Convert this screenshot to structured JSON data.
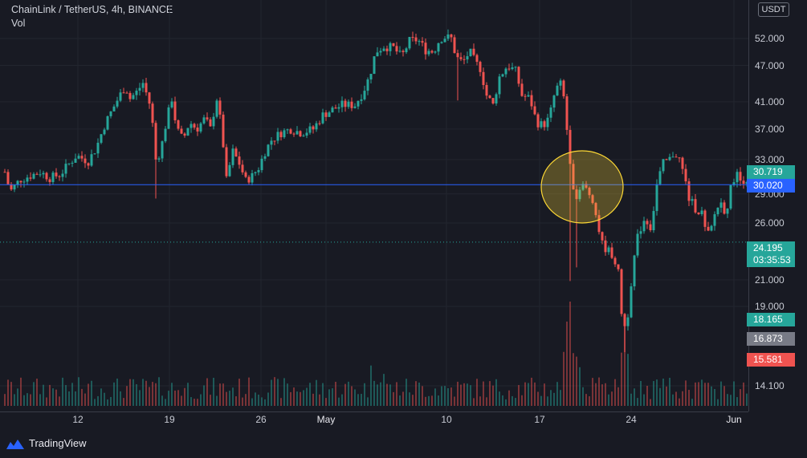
{
  "header": {
    "title": "ChainLink / TetherUS, 4h, BINANCE",
    "volume_label": "Vol"
  },
  "currency_badge": "USDT",
  "brand": {
    "name": "TradingView"
  },
  "colors": {
    "up": "#26a69a",
    "down": "#ef5350",
    "line_level": "#2962ff",
    "dotted_line": "#26a69a",
    "annotation_fill": "#fdd835"
  },
  "chart_data": {
    "type": "candlestick",
    "symbol": "ChainLink / TetherUS",
    "interval": "4h",
    "exchange": "BINANCE",
    "y_axis": {
      "ticks": [
        "52.000",
        "47.000",
        "41.000",
        "37.000",
        "33.000",
        "29.000",
        "26.000",
        "21.000",
        "19.000",
        "14.100"
      ],
      "scale": "log"
    },
    "x_axis": {
      "ticks": [
        "12",
        "19",
        "26",
        "May",
        "10",
        "17",
        "24",
        "Jun"
      ]
    },
    "price_tags": [
      {
        "value": "30.719",
        "color": "#26a69a"
      },
      {
        "value": "30.020",
        "color": "#2962ff"
      },
      {
        "value": "24.195",
        "sub": "03:35:53",
        "color": "#26a69a"
      },
      {
        "value": "18.165",
        "color": "#26a69a"
      },
      {
        "value": "16.873",
        "color": "#787b86"
      },
      {
        "value": "15.581",
        "color": "#ef5350"
      }
    ],
    "horizontal_line": 30.02,
    "dotted_line": 24.195,
    "annotation": {
      "shape": "ellipse",
      "color": "yellow"
    },
    "keypoints": [
      [
        0,
        34.5
      ],
      [
        8,
        30.5
      ],
      [
        14,
        29.4
      ],
      [
        25,
        30.6
      ],
      [
        50,
        31.5
      ],
      [
        62,
        30.8
      ],
      [
        75,
        31.2
      ],
      [
        95,
        33.5
      ],
      [
        110,
        32.8
      ],
      [
        120,
        34.5
      ],
      [
        130,
        37.5
      ],
      [
        145,
        41
      ],
      [
        156,
        43.5
      ],
      [
        162,
        41.5
      ],
      [
        170,
        42.5
      ],
      [
        178,
        44
      ],
      [
        188,
        40
      ],
      [
        194,
        33
      ],
      [
        200,
        34
      ],
      [
        207,
        38
      ],
      [
        214,
        41.5
      ],
      [
        220,
        37
      ],
      [
        228,
        35.5
      ],
      [
        236,
        38
      ],
      [
        245,
        37
      ],
      [
        255,
        38.5
      ],
      [
        262,
        37
      ],
      [
        270,
        41.5
      ],
      [
        276,
        37
      ],
      [
        282,
        30.5
      ],
      [
        290,
        34
      ],
      [
        298,
        32.5
      ],
      [
        306,
        30.5
      ],
      [
        314,
        31
      ],
      [
        322,
        32
      ],
      [
        330,
        34
      ],
      [
        338,
        35.5
      ],
      [
        350,
        36.5
      ],
      [
        362,
        37
      ],
      [
        375,
        36.5
      ],
      [
        390,
        37
      ],
      [
        402,
        39
      ],
      [
        414,
        39.8
      ],
      [
        426,
        40.5
      ],
      [
        442,
        40.5
      ],
      [
        452,
        42.5
      ],
      [
        460,
        45
      ],
      [
        468,
        49.5
      ],
      [
        478,
        50.5
      ],
      [
        490,
        50.2
      ],
      [
        500,
        48.5
      ],
      [
        510,
        51.5
      ],
      [
        520,
        51.8
      ],
      [
        530,
        49.8
      ],
      [
        540,
        49.5
      ],
      [
        548,
        52
      ],
      [
        555,
        52.3
      ],
      [
        562,
        52
      ],
      [
        568,
        48.5
      ],
      [
        576,
        47.5
      ],
      [
        585,
        49.5
      ],
      [
        592,
        47.5
      ],
      [
        598,
        46.5
      ],
      [
        606,
        42
      ],
      [
        614,
        40.5
      ],
      [
        622,
        45
      ],
      [
        632,
        47
      ],
      [
        642,
        46
      ],
      [
        650,
        42
      ],
      [
        660,
        41.5
      ],
      [
        668,
        38
      ],
      [
        676,
        37.5
      ],
      [
        684,
        38.5
      ],
      [
        692,
        43
      ],
      [
        700,
        44
      ],
      [
        706,
        37
      ],
      [
        712,
        31
      ],
      [
        718,
        28
      ],
      [
        724,
        30
      ],
      [
        730,
        29.5
      ],
      [
        738,
        28.5
      ],
      [
        744,
        26
      ],
      [
        750,
        24
      ],
      [
        756,
        23.5
      ],
      [
        764,
        23
      ],
      [
        770,
        21.5
      ],
      [
        776,
        17.2
      ],
      [
        782,
        18.5
      ],
      [
        788,
        22
      ],
      [
        795,
        25
      ],
      [
        803,
        26.5
      ],
      [
        811,
        25.5
      ],
      [
        818,
        30
      ],
      [
        826,
        32.5
      ],
      [
        834,
        33
      ],
      [
        840,
        34
      ],
      [
        846,
        33
      ],
      [
        852,
        31
      ],
      [
        858,
        28.5
      ],
      [
        866,
        27.5
      ],
      [
        874,
        27
      ],
      [
        880,
        24.6
      ],
      [
        886,
        25.5
      ],
      [
        892,
        27.5
      ],
      [
        898,
        28
      ],
      [
        904,
        27
      ],
      [
        910,
        29.5
      ],
      [
        916,
        31.5
      ],
      [
        922,
        30.5
      ],
      [
        928,
        30.7
      ]
    ]
  }
}
